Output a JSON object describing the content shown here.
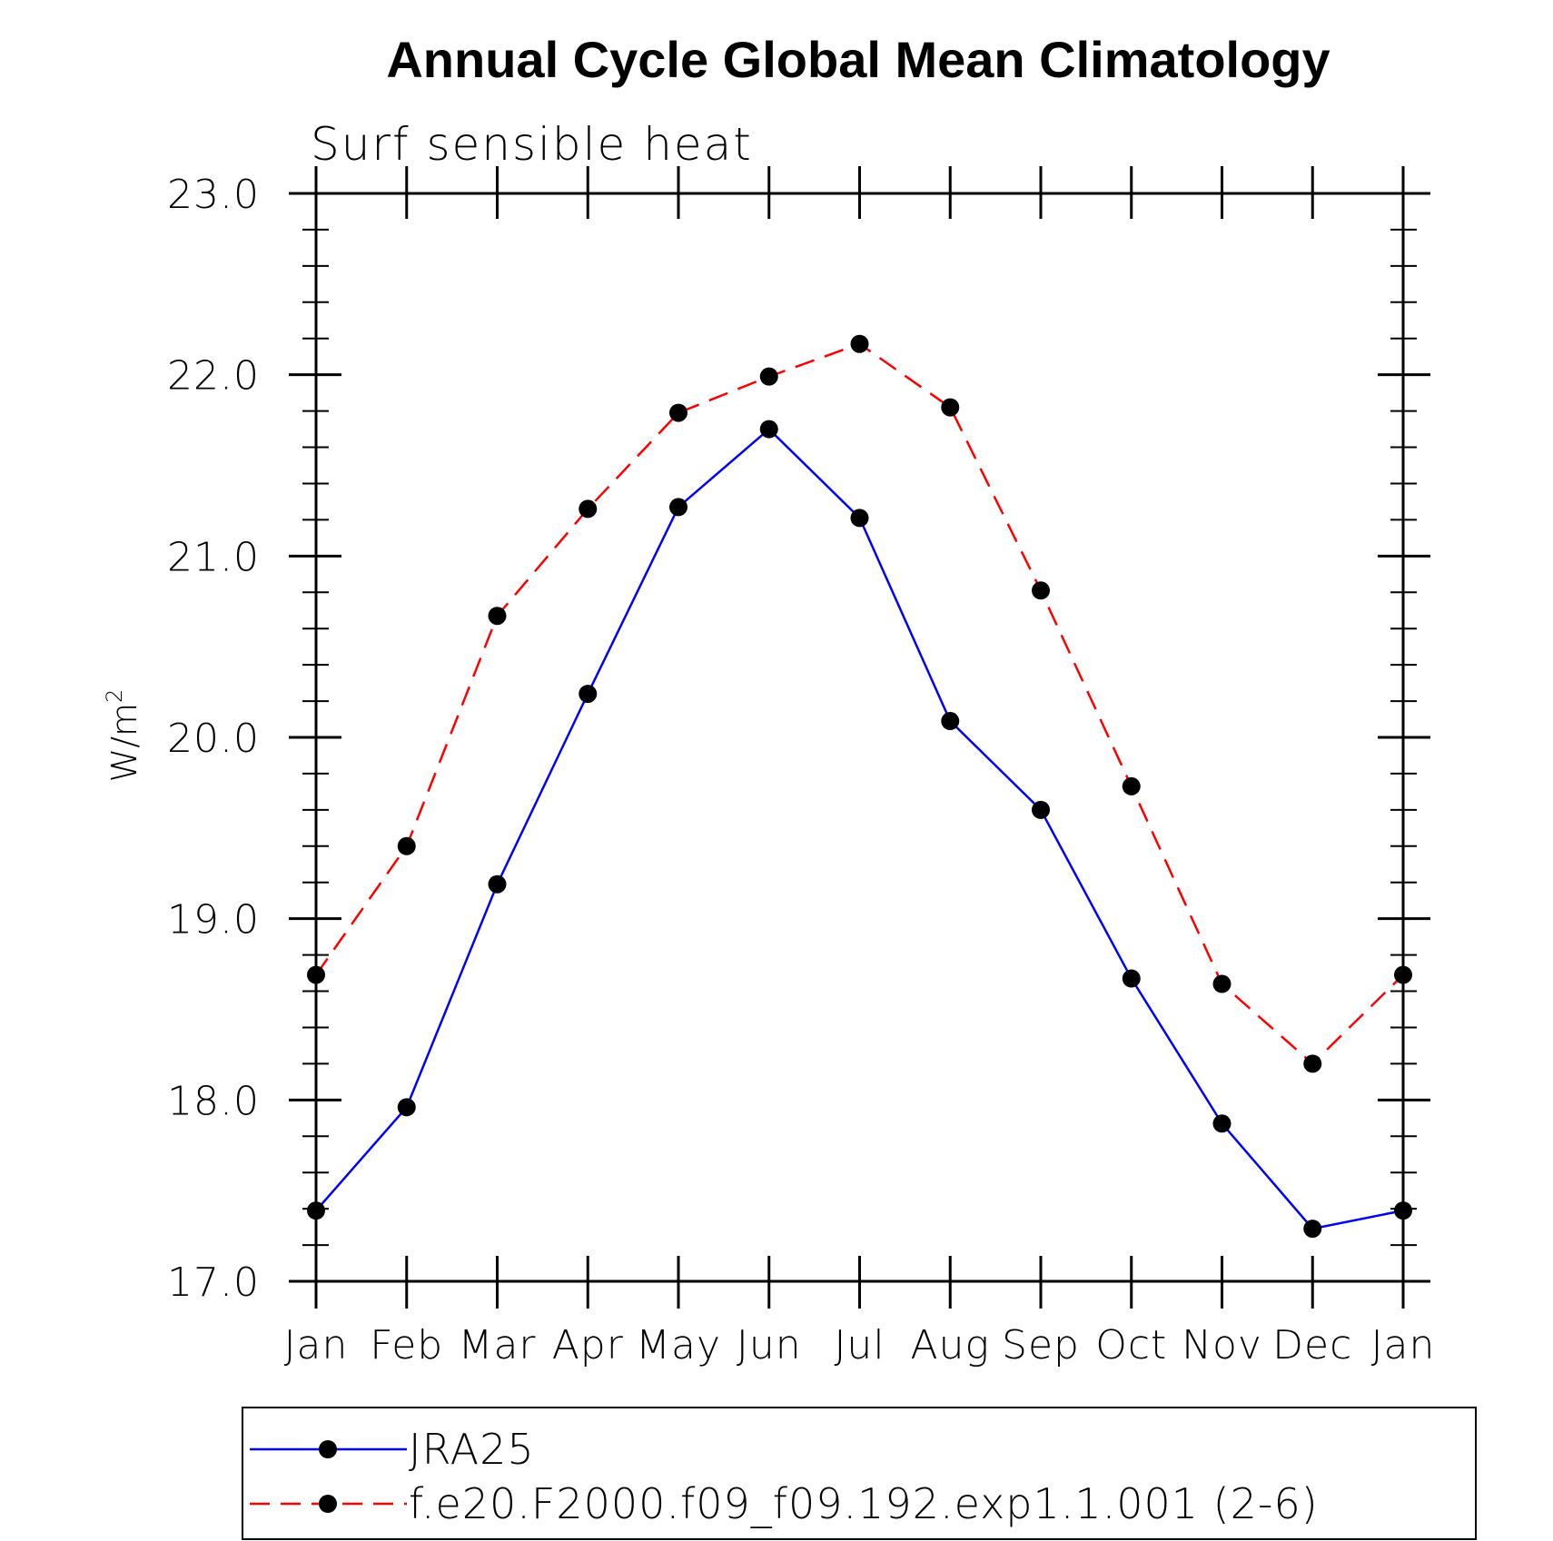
{
  "chart_data": {
    "type": "line",
    "title": "Annual Cycle Global Mean Climatology",
    "subtitle": "Surf sensible heat",
    "ylabel": "W/m",
    "ylabel_sup": "2",
    "categories": [
      "Jan",
      "Feb",
      "Mar",
      "Apr",
      "May",
      "Jun",
      "Jul",
      "Aug",
      "Sep",
      "Oct",
      "Nov",
      "Dec",
      "Jan"
    ],
    "ylim": [
      17.0,
      23.0
    ],
    "yticks": [
      17.0,
      18.0,
      19.0,
      20.0,
      21.0,
      22.0,
      23.0
    ],
    "ytick_labels": [
      "17.0",
      "18.0",
      "19.0",
      "20.0",
      "21.0",
      "22.0",
      "23.0"
    ],
    "series": [
      {
        "name": "JRA25",
        "color": "#0000ff",
        "dash": "solid",
        "marker": "filled-circle",
        "values": [
          17.39,
          17.96,
          19.19,
          20.24,
          21.27,
          21.7,
          21.21,
          20.09,
          19.6,
          18.67,
          17.87,
          17.29,
          17.39
        ]
      },
      {
        "name": "f.e20.F2000.f09_f09.192.exp1.1.001 (2-6)",
        "color": "#ff0000",
        "dash": "dashed",
        "marker": "filled-circle",
        "values": [
          18.69,
          19.4,
          20.67,
          21.26,
          21.79,
          21.99,
          22.17,
          21.82,
          20.81,
          19.73,
          18.64,
          18.2,
          18.69
        ]
      }
    ],
    "legend_position": "bottom",
    "grid": false
  }
}
